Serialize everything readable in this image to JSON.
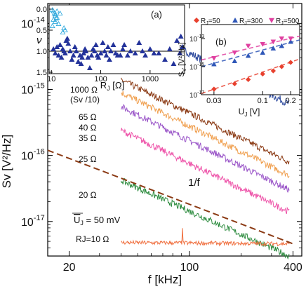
{
  "chart_data": [
    {
      "type": "line",
      "title": "",
      "xlabel": "f [kHz]",
      "ylabel": "Sv [V²/Hz]",
      "xscale": "log",
      "yscale": "log",
      "xlim": [
        15,
        450
      ],
      "ylim": [
        3e-18,
        2e-14
      ],
      "x_ticks": [
        {
          "v": 20,
          "label": "20"
        },
        {
          "v": 100,
          "label": "100"
        },
        {
          "v": 400,
          "label": "400"
        }
      ],
      "y_ticks": [
        {
          "v": 1e-14,
          "base": "10",
          "exp": "-14"
        },
        {
          "v": 1e-15,
          "base": "10",
          "exp": "-15"
        },
        {
          "v": 1e-16,
          "base": "10",
          "exp": "-16"
        },
        {
          "v": 1e-17,
          "base": "10",
          "exp": "-17"
        }
      ],
      "series": [
        {
          "name": "1000 Ω",
          "note": "(Sv /10)",
          "color": "#2e4a9e",
          "x": [
            40,
            380
          ],
          "y": [
            1.2e-14,
            6e-16
          ],
          "noise": 0.06
        },
        {
          "name": "65 Ω",
          "color": "#8b3a14",
          "x": [
            40,
            380
          ],
          "y": [
            1.4e-15,
            8e-17
          ],
          "noise": 0.05
        },
        {
          "name": "40 Ω",
          "color": "#f0a050",
          "x": [
            40,
            380
          ],
          "y": [
            9e-16,
            5e-17
          ],
          "noise": 0.05
        },
        {
          "name": "35 Ω",
          "color": "#9a55c8",
          "x": [
            40,
            380
          ],
          "y": [
            5.5e-16,
            3e-17
          ],
          "noise": 0.05
        },
        {
          "name": "25 Ω",
          "color": "#ee55aa",
          "x": [
            40,
            380
          ],
          "y": [
            2.4e-16,
            1.4e-17
          ],
          "noise": 0.05
        },
        {
          "name": "20 Ω",
          "color": "#2a8a3c",
          "x": [
            40,
            380
          ],
          "y": [
            4.2e-17,
            3e-18
          ],
          "noise": 0.05
        },
        {
          "name": "RJ=10 Ω",
          "color": "#f07040",
          "x": [
            40,
            380
          ],
          "y": [
            4.8e-18,
            4.6e-18
          ],
          "noise": 0.03
        }
      ],
      "reference_line": {
        "label": "1/f",
        "color": "#8b3a14",
        "x": [
          15,
          400
        ],
        "y": [
          1.2e-16,
          4.6e-18
        ]
      },
      "annotation": {
        "text": "U",
        "sub": "J",
        "rest": " = 50 mV"
      }
    },
    {
      "type": "scatter",
      "panel": "(a)",
      "xlabel": "R",
      "xlabel_sub": "J",
      "xlabel_unit": " [Ω]",
      "ylabel": "ν",
      "xscale": "log",
      "xlim": [
        9,
        5000
      ],
      "ylim": [
        0,
        1.5
      ],
      "y_reversed": true,
      "x_ticks": [
        {
          "v": 10,
          "label": "10"
        },
        {
          "v": 100,
          "label": "100"
        },
        {
          "v": 1000,
          "label": "1000"
        }
      ],
      "y_ticks": [
        {
          "v": 0,
          "label": "0.0"
        },
        {
          "v": 0.5,
          "label": "0.5"
        },
        {
          "v": 1.0,
          "label": "1.0"
        },
        {
          "v": 1.5,
          "label": "1.5"
        }
      ],
      "reference_y": 1.0,
      "series": [
        {
          "marker": "open",
          "color": "#33aadd",
          "points": [
            [
              10.5,
              0.02
            ],
            [
              11,
              0.05
            ],
            [
              11.5,
              0.1
            ],
            [
              12,
              0.15
            ],
            [
              12.5,
              0.22
            ],
            [
              11,
              0.25
            ],
            [
              12,
              0.3
            ],
            [
              13,
              0.2
            ],
            [
              10.5,
              0.4
            ],
            [
              14,
              0.35
            ],
            [
              15,
              0.1
            ],
            [
              13,
              0.05
            ],
            [
              17,
              0.55
            ],
            [
              18,
              0.45
            ],
            [
              19,
              0.5
            ],
            [
              12,
              0.12
            ]
          ]
        },
        {
          "marker": "filled",
          "color": "#23329a",
          "points": [
            [
              11,
              0.95
            ],
            [
              12,
              1.05
            ],
            [
              13,
              0.9
            ],
            [
              14,
              1.1
            ],
            [
              15,
              0.85
            ],
            [
              16,
              1.15
            ],
            [
              17,
              0.95
            ],
            [
              18,
              1.0
            ],
            [
              19,
              1.05
            ],
            [
              20,
              0.75
            ],
            [
              21,
              0.7
            ],
            [
              22,
              0.82
            ],
            [
              24,
              1.0
            ],
            [
              26,
              1.2
            ],
            [
              28,
              1.1
            ],
            [
              30,
              0.9
            ],
            [
              32,
              1.0
            ],
            [
              35,
              1.25
            ],
            [
              38,
              1.1
            ],
            [
              40,
              1.3
            ],
            [
              42,
              1.15
            ],
            [
              45,
              1.05
            ],
            [
              48,
              0.95
            ],
            [
              50,
              1.0
            ],
            [
              55,
              1.15
            ],
            [
              60,
              1.4
            ],
            [
              65,
              1.1
            ],
            [
              70,
              0.95
            ],
            [
              75,
              1.0
            ],
            [
              80,
              0.85
            ],
            [
              85,
              1.1
            ],
            [
              90,
              1.15
            ],
            [
              100,
              1.05
            ],
            [
              110,
              0.8
            ],
            [
              120,
              1.0
            ],
            [
              130,
              1.1
            ],
            [
              140,
              0.9
            ],
            [
              150,
              1.2
            ],
            [
              160,
              1.0
            ],
            [
              180,
              0.85
            ],
            [
              200,
              1.05
            ],
            [
              220,
              1.1
            ],
            [
              250,
              1.1
            ],
            [
              280,
              0.95
            ],
            [
              300,
              0.85
            ],
            [
              350,
              1.1
            ],
            [
              400,
              1.0
            ],
            [
              500,
              1.05
            ],
            [
              600,
              0.8
            ],
            [
              700,
              1.0
            ],
            [
              800,
              1.1
            ],
            [
              1000,
              0.95
            ],
            [
              1200,
              1.05
            ],
            [
              1500,
              1.05
            ],
            [
              2000,
              1.2
            ],
            [
              2500,
              0.95
            ],
            [
              3000,
              1.3
            ],
            [
              3500,
              0.75
            ],
            [
              4000,
              1.05
            ],
            [
              4200,
              0.65
            ],
            [
              4500,
              0.9
            ]
          ]
        }
      ]
    },
    {
      "type": "scatter",
      "panel": "(b)",
      "xlabel": "U",
      "xlabel_sub": "J",
      "xlabel_unit": " [V]",
      "ylabel": "S",
      "ylabel_sub": "V",
      "ylabel_unit": " [V²/Hz]",
      "xscale": "log",
      "yscale": "log",
      "xlim": [
        0.022,
        0.25
      ],
      "ylim": [
        1e-17,
        1e-12
      ],
      "x_ticks": [
        {
          "v": 0.03,
          "label": "0.03"
        },
        {
          "v": 0.1,
          "label": "0.1"
        },
        {
          "v": 0.2,
          "label": "0.2"
        }
      ],
      "y_ticks": [
        {
          "v": 1e-13,
          "base": "10",
          "exp": "-13"
        },
        {
          "v": 1e-15,
          "base": "10",
          "exp": "-15"
        },
        {
          "v": 1e-17,
          "base": "10",
          "exp": "-17"
        }
      ],
      "series": [
        {
          "name": "RJ=50",
          "label": "R",
          "label_sub": "J",
          "label_rest": "=50",
          "marker": "diamond",
          "color": "#e8402e",
          "points": [
            [
              0.03,
              2.5e-17
            ],
            [
              0.05,
              6e-17
            ],
            [
              0.07,
              1.2e-16
            ],
            [
              0.1,
              3e-16
            ],
            [
              0.13,
              5e-16
            ],
            [
              0.16,
              1e-15
            ],
            [
              0.2,
              2e-15
            ]
          ],
          "fit": [
            [
              0.022,
              1.2e-17
            ],
            [
              0.25,
              3.5e-15
            ]
          ]
        },
        {
          "name": "RJ=300",
          "label": "R",
          "label_sub": "J",
          "label_rest": "=300",
          "marker": "triangle-up",
          "color": "#2f57b8",
          "points": [
            [
              0.03,
              1.5e-15
            ],
            [
              0.05,
              2.5e-15
            ],
            [
              0.07,
              6e-15
            ],
            [
              0.1,
              1e-14
            ],
            [
              0.13,
              2e-14
            ],
            [
              0.16,
              3e-14
            ],
            [
              0.2,
              6e-14
            ]
          ],
          "fit": [
            [
              0.022,
              1e-15
            ],
            [
              0.25,
              8e-14
            ]
          ]
        },
        {
          "name": "RJ=500",
          "label": "R",
          "label_sub": "J",
          "label_rest": "=500",
          "marker": "triangle-down",
          "color": "#e040a0",
          "points": [
            [
              0.03,
              4e-15
            ],
            [
              0.05,
              1e-14
            ],
            [
              0.07,
              3e-14
            ],
            [
              0.1,
              4e-14
            ],
            [
              0.13,
              6e-14
            ],
            [
              0.16,
              1e-13
            ],
            [
              0.2,
              1e-13
            ]
          ],
          "fit": [
            [
              0.022,
              3e-15
            ],
            [
              0.25,
              1.5e-13
            ]
          ]
        }
      ]
    }
  ]
}
